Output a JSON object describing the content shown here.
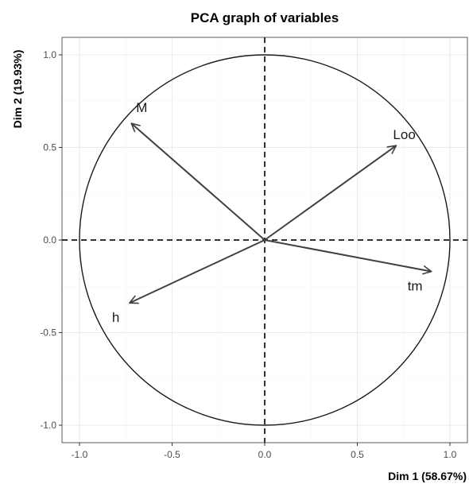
{
  "chart_data": {
    "type": "scatter",
    "title": "PCA graph of variables",
    "xlabel": "Dim 1 (58.67%)",
    "ylabel": "Dim 2 (19.93%)",
    "xlim": [
      -1.0,
      1.0
    ],
    "ylim": [
      -1.0,
      1.0
    ],
    "xticks": [
      -1.0,
      -0.5,
      0.0,
      0.5,
      1.0
    ],
    "yticks": [
      -1.0,
      -0.5,
      0.0,
      0.5,
      1.0
    ],
    "xtick_labels": [
      "-1.0",
      "-0.5",
      "0.0",
      "0.5",
      "1.0"
    ],
    "ytick_labels": [
      "-1.0",
      "-0.5",
      "0.0",
      "0.5",
      "1.0"
    ],
    "grid": true,
    "unit_circle": true,
    "variables": [
      {
        "name": "M",
        "x": -0.72,
        "y": 0.63
      },
      {
        "name": "Loo",
        "x": 0.71,
        "y": 0.51
      },
      {
        "name": "tm",
        "x": 0.9,
        "y": -0.17
      },
      {
        "name": "h",
        "x": -0.73,
        "y": -0.34
      }
    ]
  },
  "colors": {
    "arrow": "#404040",
    "circle": "#1a1a1a",
    "grid_major": "#ebebeb",
    "grid_minor": "#f5f5f5",
    "panel_border": "#333333"
  }
}
